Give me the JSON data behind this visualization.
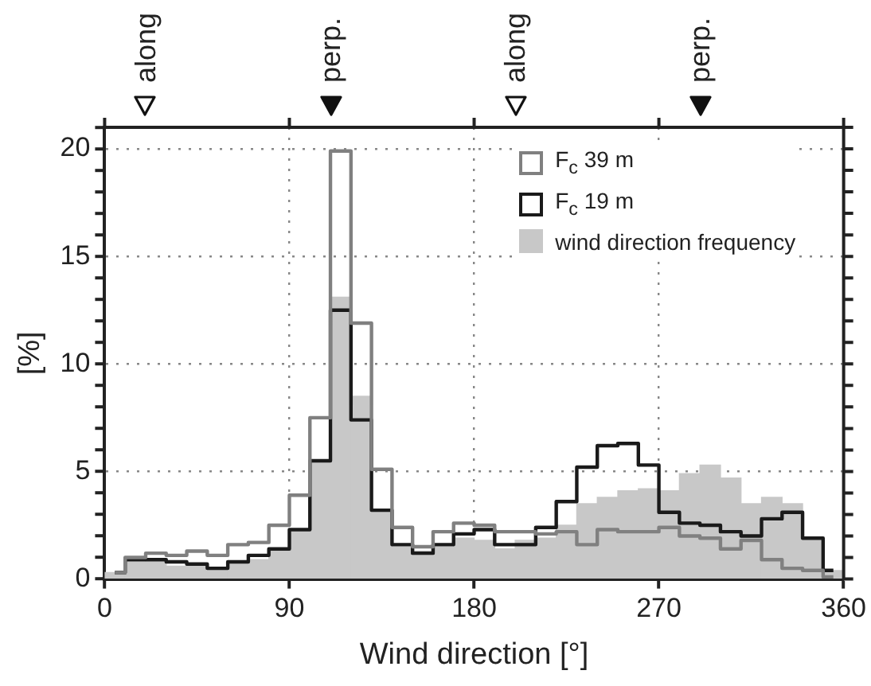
{
  "chart_data": {
    "type": "histogram",
    "xlabel": "Wind direction [°]",
    "ylabel": "[%]",
    "bins": [
      0,
      10,
      20,
      30,
      40,
      50,
      60,
      70,
      80,
      90,
      100,
      110,
      120,
      130,
      140,
      150,
      160,
      170,
      180,
      190,
      200,
      210,
      220,
      230,
      240,
      250,
      260,
      270,
      280,
      290,
      300,
      310,
      320,
      330,
      340,
      350,
      360
    ],
    "series": [
      {
        "name": "F$_{c}$ 39 m",
        "type": "step",
        "color": "#808080",
        "x": [
          5,
          15,
          25,
          35,
          45,
          55,
          65,
          75,
          85,
          95,
          105,
          115,
          125,
          135,
          145,
          155,
          165,
          175,
          185,
          195,
          205,
          215,
          225,
          235,
          245,
          255,
          265,
          275,
          285,
          295,
          305,
          315,
          325,
          335,
          345,
          355
        ],
        "values": [
          0.3,
          1.0,
          1.2,
          1.1,
          1.3,
          1.1,
          1.6,
          1.7,
          2.5,
          3.9,
          7.5,
          19.9,
          11.9,
          5.1,
          2.4,
          1.5,
          2.2,
          2.6,
          2.5,
          2.2,
          2.2,
          2.1,
          2.2,
          1.6,
          2.3,
          2.2,
          2.2,
          2.4,
          2.0,
          1.9,
          1.4,
          1.8,
          0.9,
          0.5,
          0.4,
          0.1
        ]
      },
      {
        "name": "F$_{c}$ 19 m",
        "type": "step",
        "color": "#1a1a1a",
        "x": [
          5,
          15,
          25,
          35,
          45,
          55,
          65,
          75,
          85,
          95,
          105,
          115,
          125,
          135,
          145,
          155,
          165,
          175,
          185,
          195,
          205,
          215,
          225,
          235,
          245,
          255,
          265,
          275,
          285,
          295,
          305,
          315,
          325,
          335,
          345,
          355
        ],
        "values": [
          0.3,
          0.9,
          0.9,
          0.8,
          0.7,
          0.5,
          0.8,
          1.1,
          1.4,
          2.3,
          5.5,
          12.5,
          7.4,
          3.2,
          1.6,
          1.2,
          1.6,
          2.1,
          2.3,
          1.6,
          1.6,
          2.4,
          3.6,
          5.2,
          6.2,
          6.3,
          5.3,
          3.1,
          2.6,
          2.5,
          2.2,
          2.0,
          2.8,
          3.1,
          1.9,
          0.4
        ]
      },
      {
        "name": "wind direction frequency",
        "color": "#c8c8c8",
        "values": [
          0.3,
          0.8,
          0.8,
          0.6,
          0.6,
          0.5,
          0.7,
          0.9,
          1.4,
          2.3,
          5.5,
          13.1,
          8.5,
          3.2,
          1.5,
          1.3,
          1.5,
          1.9,
          1.8,
          1.4,
          1.8,
          1.9,
          2.5,
          3.5,
          3.8,
          4.1,
          4.2,
          4.1,
          4.9,
          5.3,
          4.7,
          3.5,
          3.8,
          3.5,
          1.9,
          0.4
        ]
      }
    ],
    "xlim": [
      0,
      360
    ],
    "xticks": [
      0,
      90,
      180,
      270,
      360
    ],
    "ylim": [
      0,
      21
    ],
    "yticks": [
      0,
      {
        "value": 1,
        "label": null
      },
      {
        "value": 2,
        "label": null
      },
      {
        "value": 3,
        "label": null
      },
      {
        "value": 4,
        "label": null
      },
      5,
      {
        "value": 6,
        "label": null
      },
      {
        "value": 7,
        "label": null
      },
      {
        "value": 8,
        "label": null
      },
      {
        "value": 9,
        "label": null
      },
      10,
      {
        "value": 11,
        "label": null
      },
      {
        "value": 12,
        "label": null
      },
      {
        "value": 13,
        "label": null
      },
      {
        "value": 14,
        "label": null
      },
      15,
      {
        "value": 16,
        "label": null
      },
      {
        "value": 17,
        "label": null
      },
      {
        "value": 18,
        "label": null
      },
      {
        "value": 19,
        "label": null
      },
      20,
      {
        "value": 21,
        "label": null
      }
    ],
    "annotations": [
      "along",
      "perp.",
      "along",
      "perp."
    ],
    "grid": true,
    "legend": "top right"
  }
}
